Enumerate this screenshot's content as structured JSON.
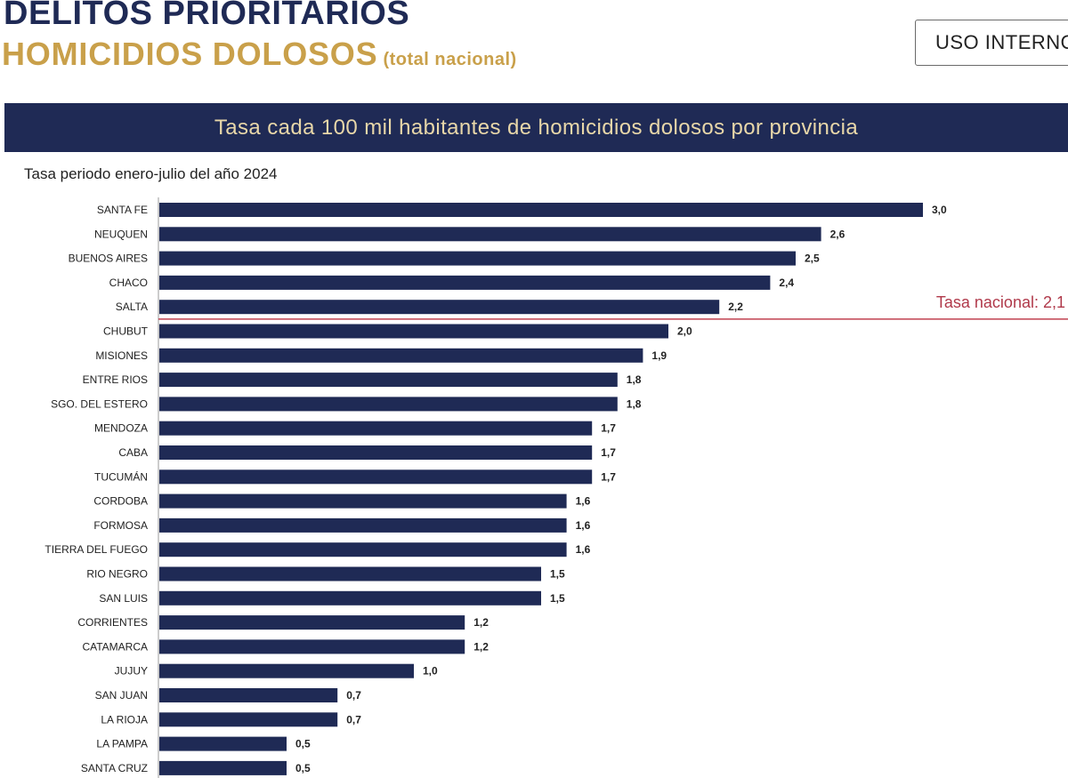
{
  "header": {
    "title": "DELITOS PRIORITARIOS",
    "subtitle": "HOMICIDIOS DOLOSOS",
    "subtitle_note": "(total nacional)",
    "badge": "USO INTERNO"
  },
  "banner": {
    "text": "Tasa cada 100 mil habitantes de homicidios dolosos por provincia"
  },
  "period_label": "Tasa periodo enero-julio del año 2024",
  "colors": {
    "bar": "#1f2a55",
    "accent_gold": "#c9a04a",
    "reference_line": "#c0404f"
  },
  "chart_data": {
    "type": "bar",
    "orientation": "horizontal",
    "title": "Tasa cada 100 mil habitantes de homicidios dolosos por provincia",
    "subtitle": "Tasa periodo enero-julio del año 2024",
    "categories": [
      "SANTA FE",
      "NEUQUEN",
      "BUENOS AIRES",
      "CHACO",
      "SALTA",
      "CHUBUT",
      "MISIONES",
      "ENTRE RIOS",
      "SGO. DEL ESTERO",
      "MENDOZA",
      "CABA",
      "TUCUMÁN",
      "CORDOBA",
      "FORMOSA",
      "TIERRA DEL FUEGO",
      "RIO NEGRO",
      "SAN LUIS",
      "CORRIENTES",
      "CATAMARCA",
      "JUJUY",
      "SAN JUAN",
      "LA RIOJA",
      "LA PAMPA",
      "SANTA CRUZ"
    ],
    "values": [
      3.0,
      2.6,
      2.5,
      2.4,
      2.2,
      2.0,
      1.9,
      1.8,
      1.8,
      1.7,
      1.7,
      1.7,
      1.6,
      1.6,
      1.6,
      1.5,
      1.5,
      1.2,
      1.2,
      1.0,
      0.7,
      0.7,
      0.5,
      0.5
    ],
    "value_labels": [
      "3,0",
      "2,6",
      "2,5",
      "2,4",
      "2,2",
      "2,0",
      "1,9",
      "1,8",
      "1,8",
      "1,7",
      "1,7",
      "1,7",
      "1,6",
      "1,6",
      "1,6",
      "1,5",
      "1,5",
      "1,2",
      "1,2",
      "1,0",
      "0,7",
      "0,7",
      "0,5",
      "0,5"
    ],
    "reference_line": {
      "value": 2.1,
      "label": "Tasa nacional: 2,1"
    },
    "grid": false,
    "legend": false
  }
}
